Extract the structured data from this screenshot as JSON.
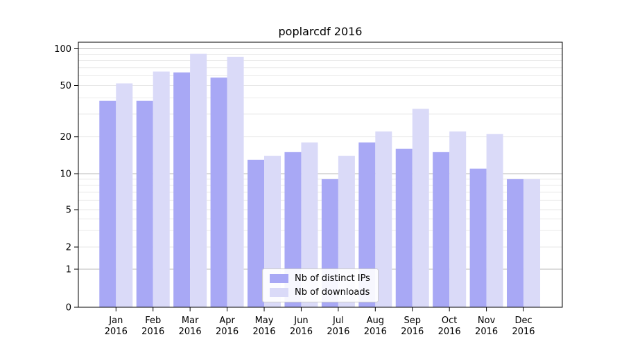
{
  "chart_data": {
    "type": "bar",
    "title": "poplarcdf 2016",
    "categories": [
      "Jan",
      "Feb",
      "Mar",
      "Apr",
      "May",
      "Jun",
      "Jul",
      "Aug",
      "Sep",
      "Oct",
      "Nov",
      "Dec"
    ],
    "year_label": "2016",
    "series": [
      {
        "name": "Nb of distinct IPs",
        "color": "#a8a8f5",
        "values": [
          38,
          38,
          64,
          58,
          13,
          15,
          9,
          18,
          16,
          15,
          11,
          9
        ]
      },
      {
        "name": "Nb of downloads",
        "color": "#dadaf8",
        "values": [
          52,
          65,
          91,
          86,
          14,
          18,
          14,
          22,
          33,
          22,
          21,
          9
        ]
      }
    ],
    "xlabel": "",
    "ylabel": "",
    "yscale": "symlog",
    "ylim": [
      0,
      112
    ],
    "y_ticks": [
      0,
      1,
      2,
      5,
      10,
      20,
      50,
      100
    ],
    "y_major_gridlines": [
      1,
      10,
      100
    ],
    "y_minor_gridlines": [
      2,
      3,
      4,
      5,
      6,
      7,
      8,
      9,
      20,
      30,
      40,
      50,
      60,
      70,
      80,
      90
    ],
    "grid": "on",
    "legend_position": "lower center",
    "colors": {
      "grid_major": "#b8b8b8",
      "grid_minor": "#e7e7e7",
      "axis": "#000000",
      "background": "#ffffff"
    }
  }
}
